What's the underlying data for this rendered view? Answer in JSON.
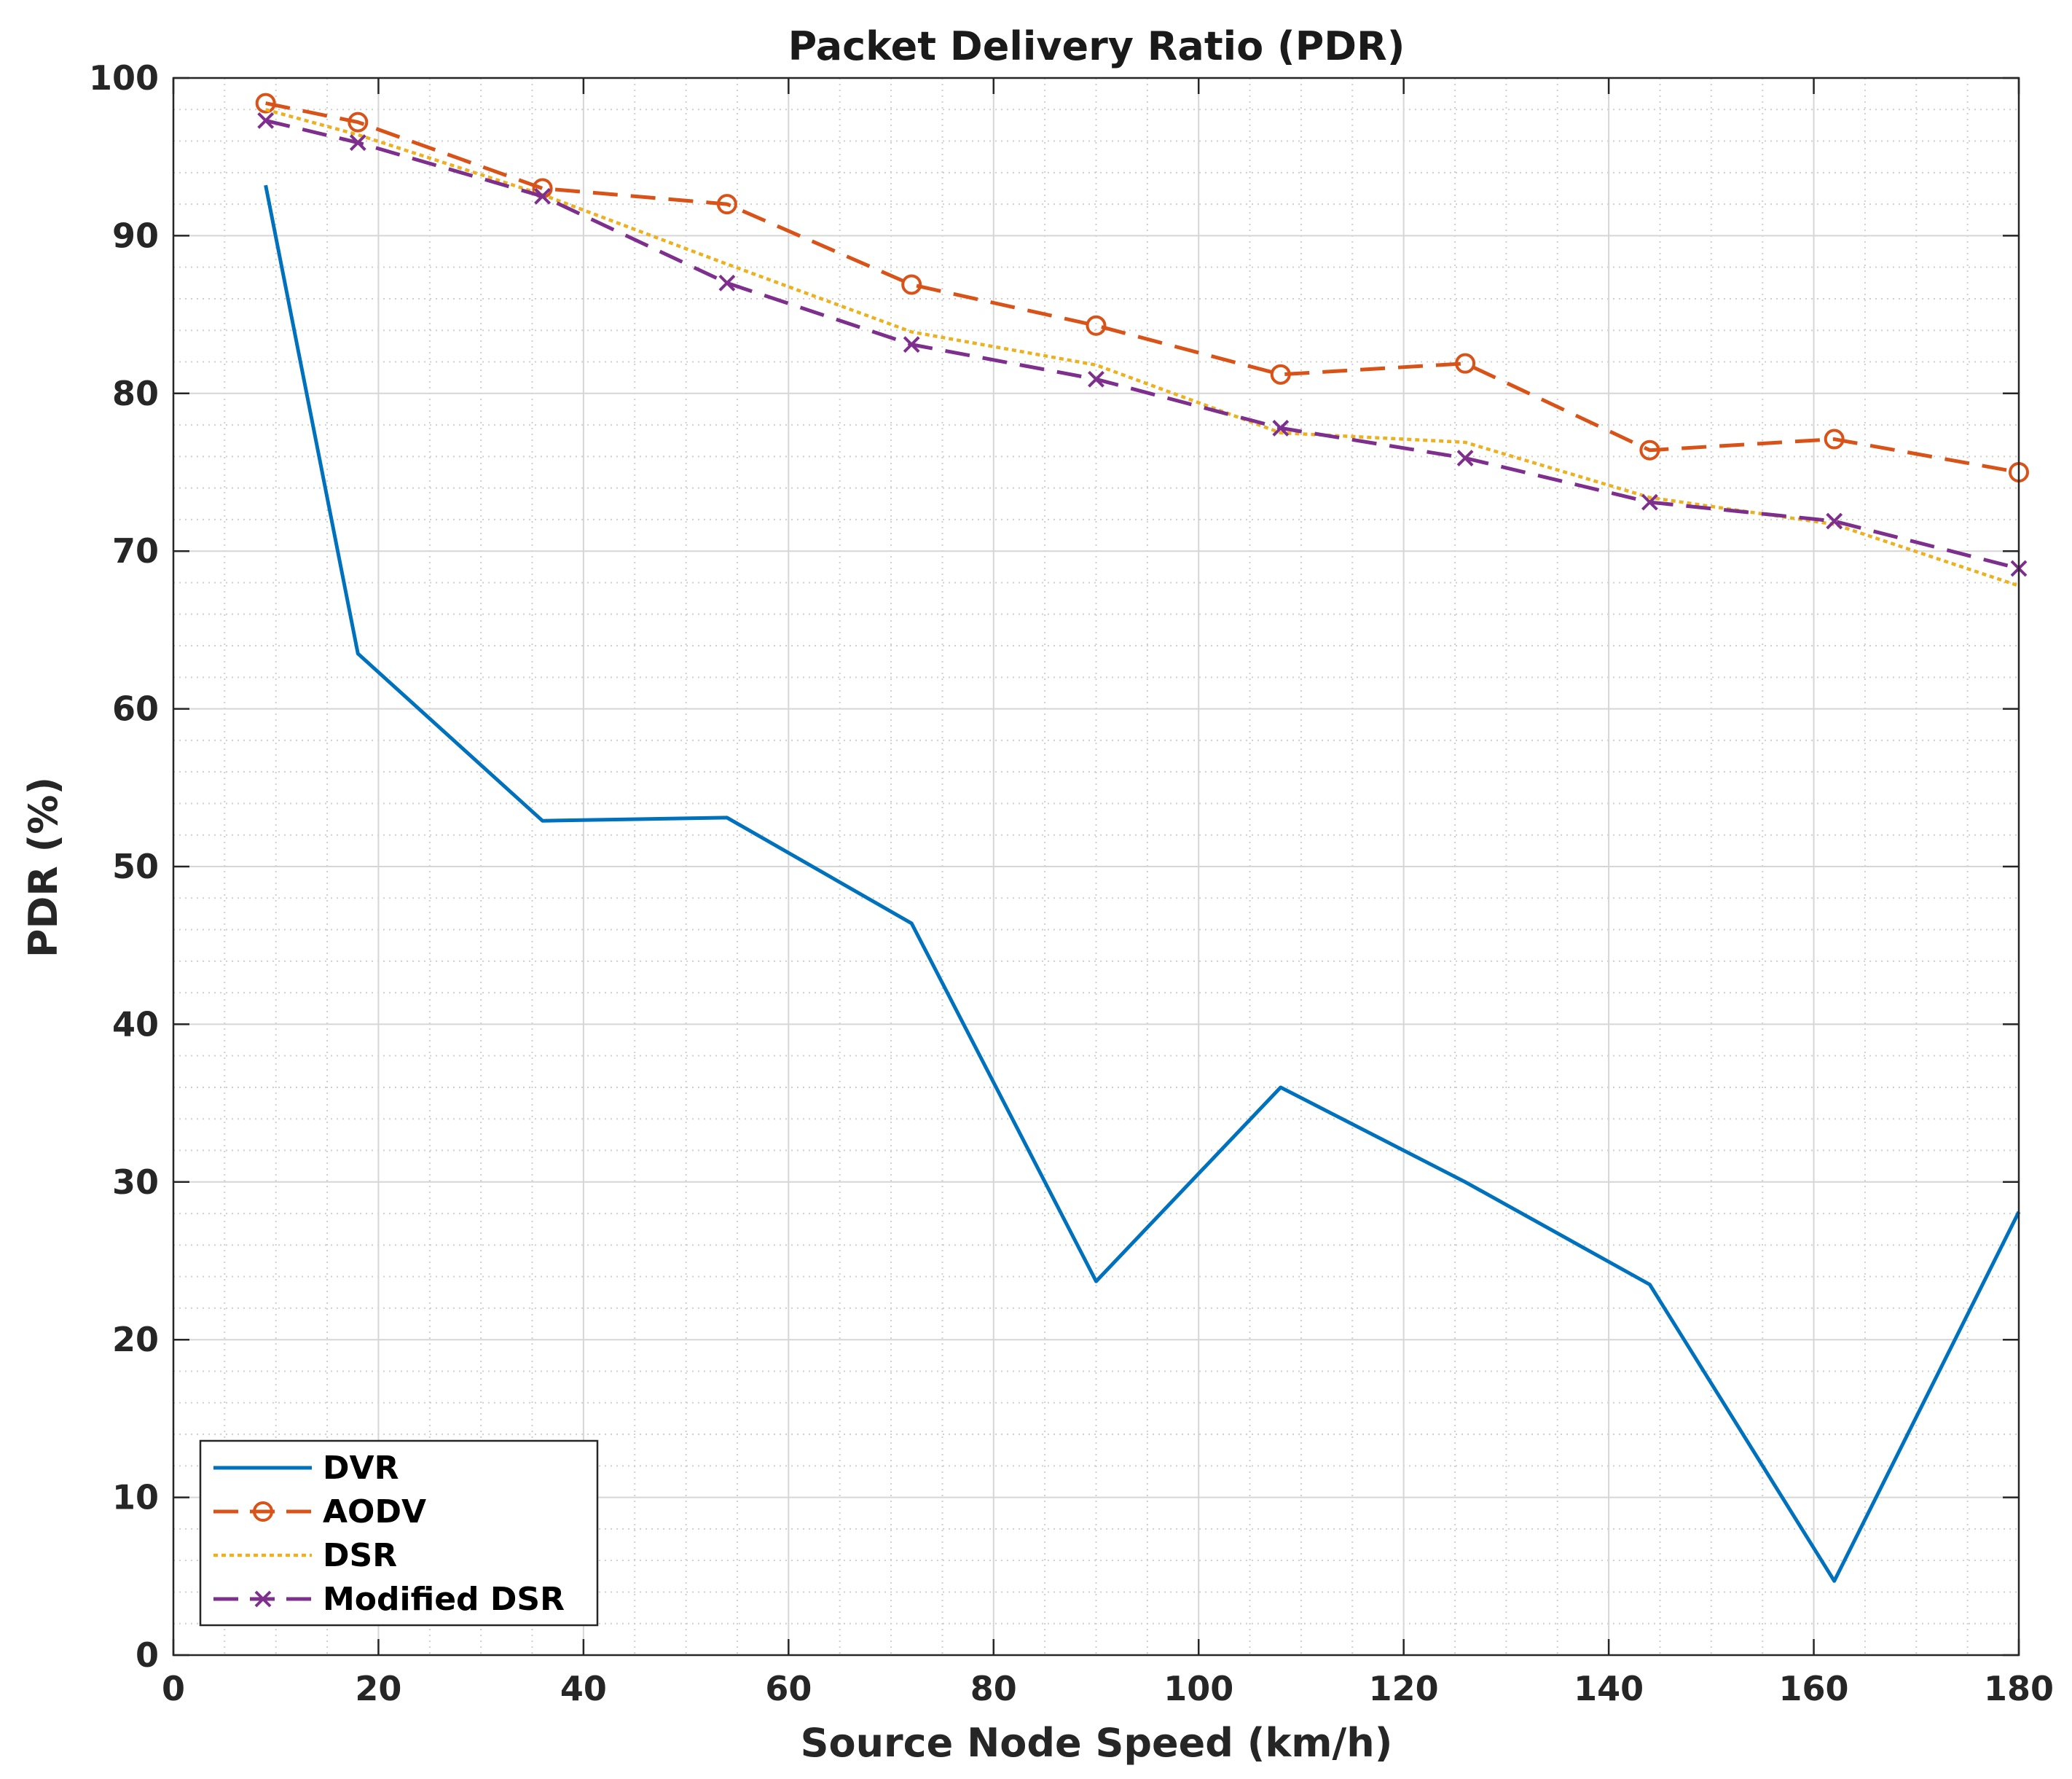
{
  "chart_data": {
    "type": "line",
    "title": "Packet Delivery Ratio (PDR)",
    "xlabel": "Source Node Speed (km/h)",
    "ylabel": "PDR (%)",
    "xlim": [
      0,
      180
    ],
    "ylim": [
      0,
      100
    ],
    "xticks": [
      0,
      20,
      40,
      60,
      80,
      100,
      120,
      140,
      160,
      180
    ],
    "yticks": [
      0,
      10,
      20,
      30,
      40,
      50,
      60,
      70,
      80,
      90,
      100
    ],
    "grid": true,
    "minor_grid": true,
    "legend_position": "bottom-left",
    "x": [
      9,
      18,
      36,
      54,
      72,
      90,
      108,
      126,
      144,
      162,
      180
    ],
    "series": [
      {
        "name": "DVR",
        "color": "#0072BD",
        "style": "solid",
        "marker": "none",
        "values": [
          93.2,
          63.5,
          52.9,
          53.1,
          46.4,
          23.7,
          36.0,
          30.0,
          23.5,
          4.7,
          28.1
        ]
      },
      {
        "name": "AODV",
        "color": "#D95319",
        "style": "dashed",
        "marker": "circle",
        "values": [
          98.4,
          97.2,
          93.0,
          92.0,
          86.9,
          84.3,
          81.2,
          81.9,
          76.4,
          77.1,
          75.0
        ]
      },
      {
        "name": "DSR",
        "color": "#EDB120",
        "style": "dotted",
        "marker": "none",
        "values": [
          98.0,
          96.4,
          92.6,
          88.2,
          83.9,
          81.8,
          77.5,
          76.9,
          73.4,
          71.7,
          67.8
        ]
      },
      {
        "name": "Modified DSR",
        "color": "#7E2F8E",
        "style": "dashed",
        "marker": "x",
        "values": [
          97.3,
          95.9,
          92.5,
          87.0,
          83.1,
          80.9,
          77.8,
          75.9,
          73.1,
          71.9,
          68.9
        ]
      }
    ]
  }
}
